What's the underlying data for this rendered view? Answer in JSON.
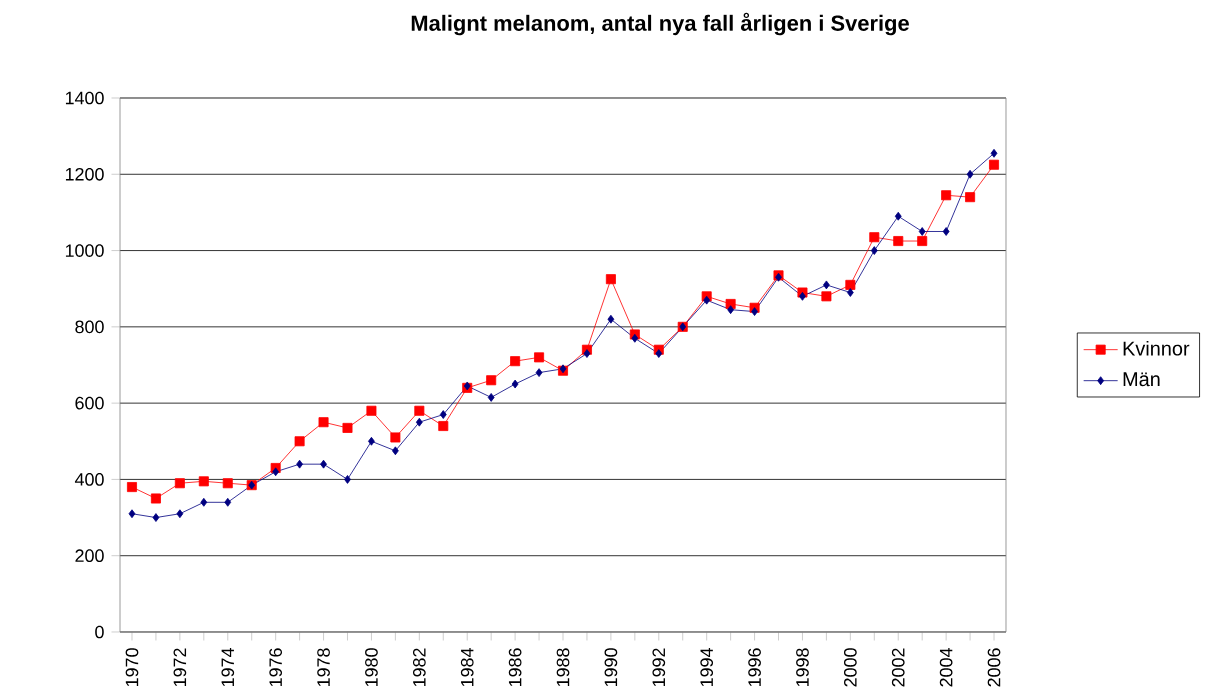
{
  "chart_data": {
    "type": "line",
    "title": "Malignt melanom, antal nya fall årligen i Sverige",
    "categories": [
      "1970",
      null,
      "1972",
      null,
      "1974",
      null,
      "1976",
      null,
      "1978",
      null,
      "1980",
      null,
      "1982",
      null,
      "1984",
      null,
      "1986",
      null,
      "1988",
      null,
      "1990",
      null,
      "1992",
      null,
      "1994",
      null,
      "1996",
      null,
      "1998",
      null,
      "2000",
      null,
      "2002",
      null,
      "2004",
      null,
      "2006"
    ],
    "series": [
      {
        "name": "Kvinnor",
        "color": "#ff0000",
        "marker": "square",
        "values": [
          380,
          350,
          390,
          395,
          390,
          385,
          430,
          500,
          550,
          535,
          580,
          510,
          580,
          540,
          640,
          660,
          710,
          720,
          685,
          740,
          925,
          780,
          740,
          800,
          880,
          860,
          850,
          935,
          890,
          880,
          910,
          1035,
          1025,
          1025,
          1145,
          1140,
          1225
        ]
      },
      {
        "name": "Män",
        "color": "#000080",
        "marker": "diamond",
        "values": [
          310,
          300,
          310,
          340,
          340,
          385,
          420,
          440,
          440,
          400,
          500,
          475,
          550,
          570,
          645,
          615,
          650,
          680,
          690,
          730,
          820,
          770,
          730,
          800,
          870,
          845,
          840,
          930,
          880,
          910,
          890,
          1000,
          1090,
          1050,
          1050,
          1200,
          1255
        ]
      }
    ],
    "ylim": [
      0,
      1400
    ],
    "yticks": [
      0,
      200,
      400,
      600,
      800,
      1000,
      1200,
      1400
    ],
    "grid": "y",
    "legend": "right",
    "line_style": "solid"
  }
}
